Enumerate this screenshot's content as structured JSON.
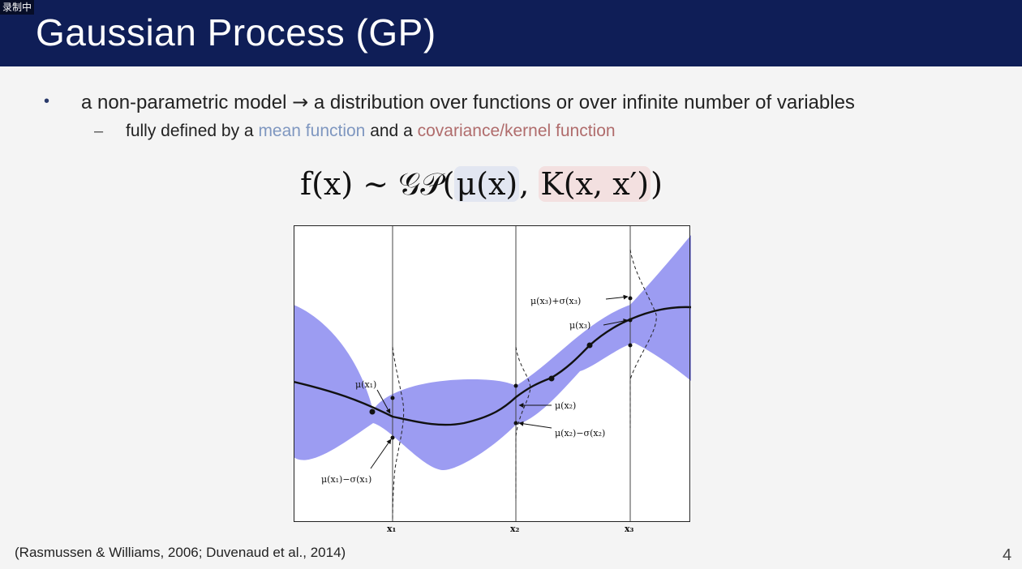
{
  "overlay": {
    "recording_label": "录制中"
  },
  "slide": {
    "title": "Gaussian Process (GP)",
    "bullet1": {
      "before": "a non-parametric model ",
      "arrow": "→",
      "after": " a distribution over functions or over infinite number of variables"
    },
    "sub_bullet": {
      "dash": "–",
      "prefix": "fully defined by a ",
      "mean": "mean function",
      "middle": " and a ",
      "cov": "covariance/kernel function"
    },
    "equation": {
      "lhs": "f(x) ~ 𝒢𝒫(",
      "mean": "μ(x)",
      "sep": ", ",
      "cov": "K(x, x′)",
      "close": ")"
    },
    "figure_labels": {
      "mu1": "μ(x₁)",
      "mu1_minus_sigma1": "μ(x₁)−σ(x₁)",
      "mu2": "μ(x₂)",
      "mu2_minus_sigma2": "μ(x₂)−σ(x₂)",
      "mu3_plus_sigma3": "μ(x₃)+σ(x₃)",
      "mu3": "μ(x₃)",
      "x1": "x₁",
      "x2": "x₂",
      "x3": "x₃"
    },
    "citation": "(Rasmussen & Williams, 2006; Duvenaud et al., 2014)",
    "page_number": "4"
  },
  "colors": {
    "header_bg": "#0f1e57",
    "band_fill": "#9c9cf2",
    "mean_text": "#7f97c0",
    "cov_text": "#b06c6c"
  }
}
